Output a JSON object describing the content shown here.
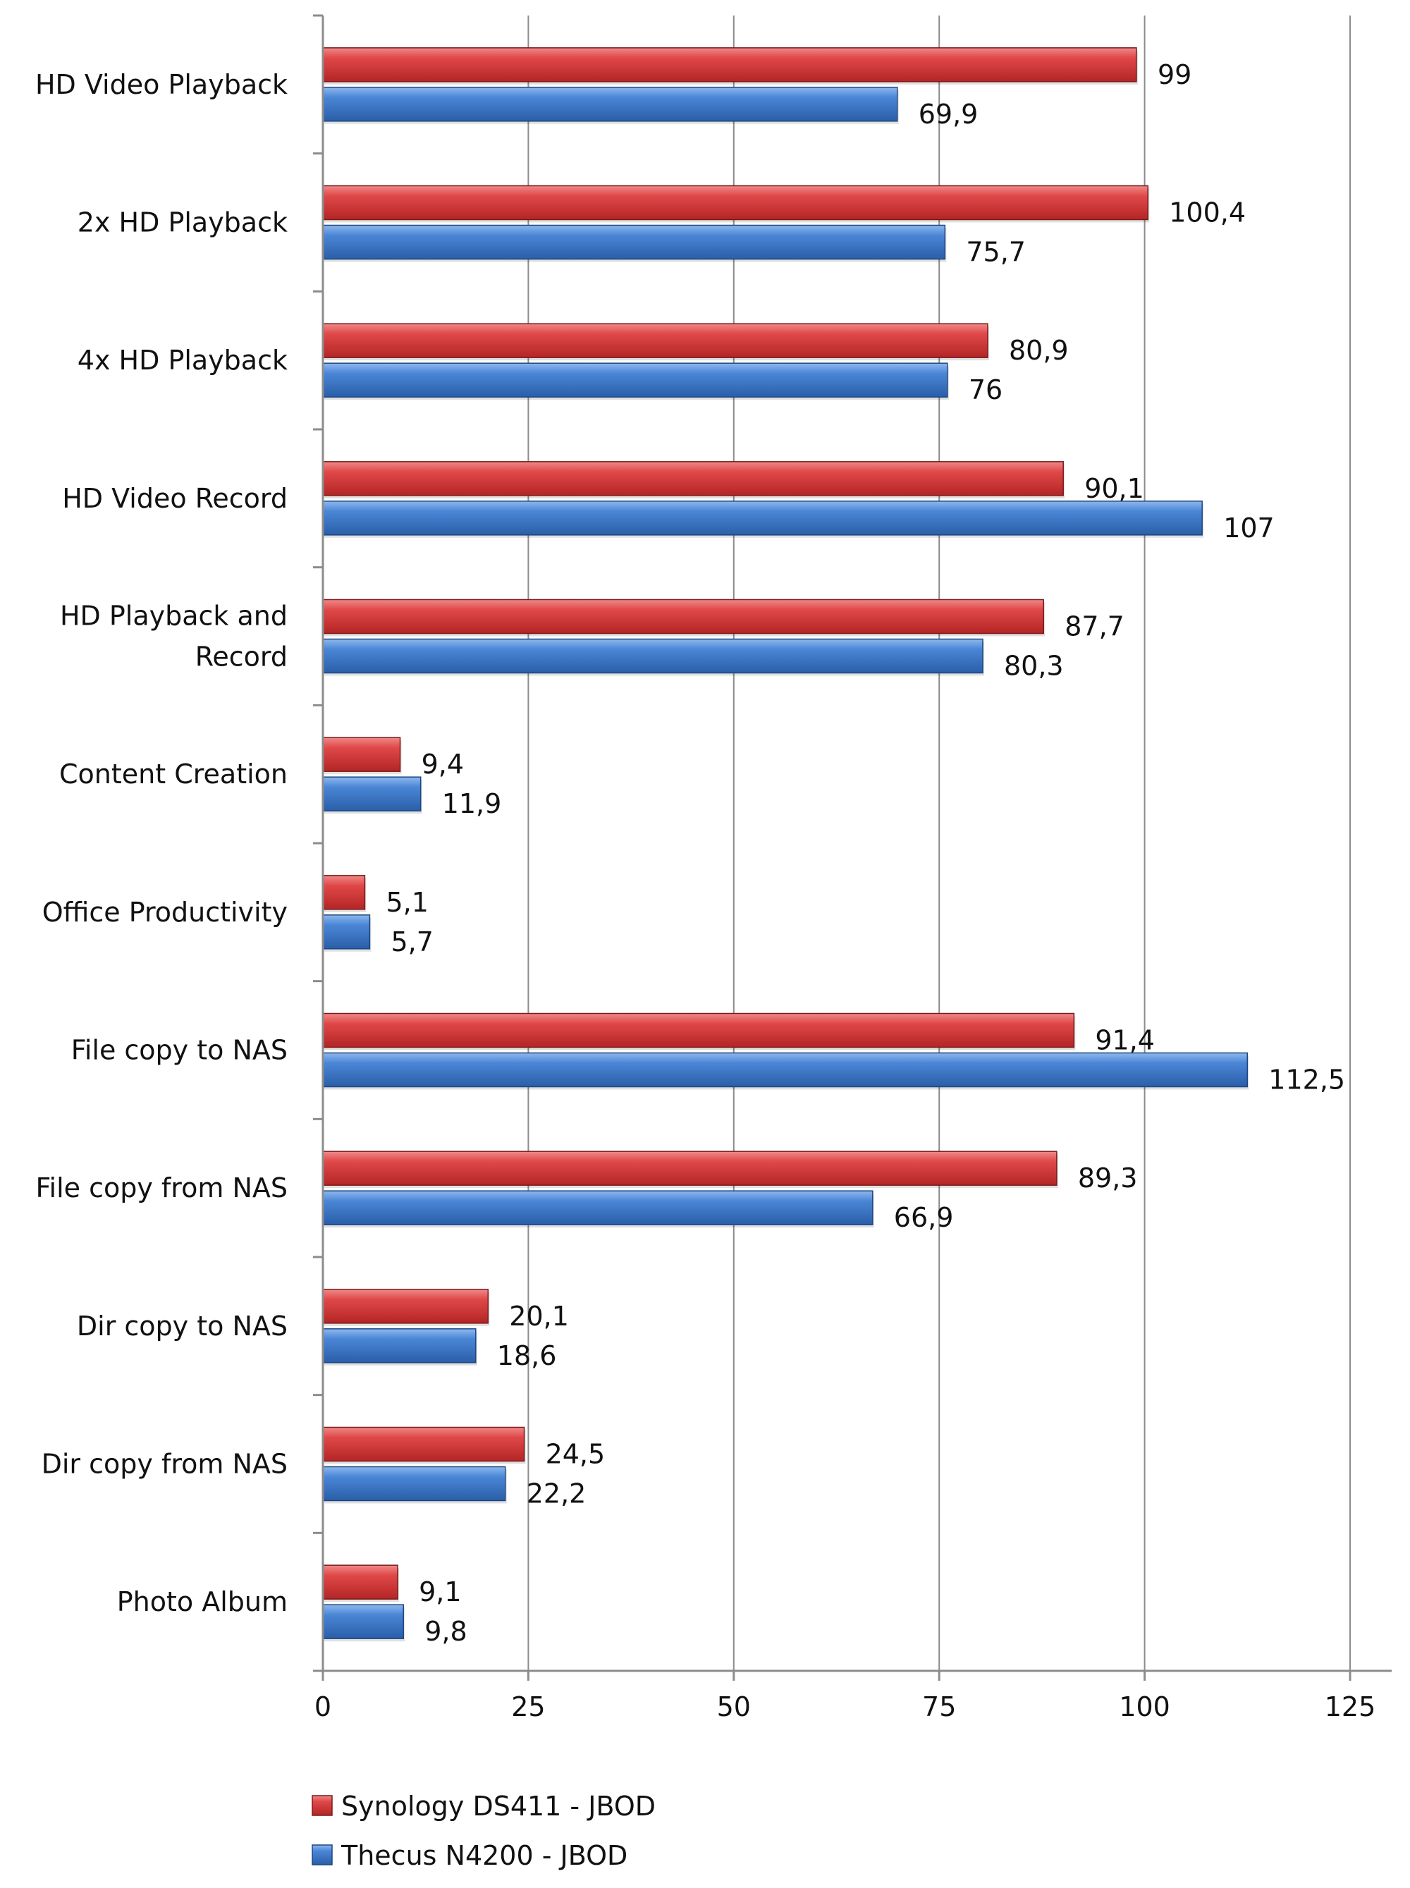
{
  "chart_data": {
    "type": "bar",
    "orientation": "horizontal",
    "title": "",
    "xlabel": "",
    "ylabel": "",
    "xlim": [
      0,
      125
    ],
    "x_ticks": [
      0,
      25,
      50,
      75,
      100,
      125
    ],
    "x_tick_labels": [
      "0",
      "25",
      "50",
      "75",
      "100",
      "125"
    ],
    "grid": "vertical",
    "legend_position": "bottom-left",
    "categories": [
      [
        "HD Video Playback"
      ],
      [
        "2x HD Playback"
      ],
      [
        "4x HD Playback"
      ],
      [
        "HD Video Record"
      ],
      [
        "HD Playback and",
        "Record"
      ],
      [
        "Content Creation"
      ],
      [
        "Office Productivity"
      ],
      [
        "File copy to NAS"
      ],
      [
        "File copy from NAS"
      ],
      [
        "Dir copy to NAS"
      ],
      [
        "Dir copy from NAS"
      ],
      [
        "Photo Album"
      ]
    ],
    "series": [
      {
        "name": "Synology DS411 - JBOD",
        "color": "#d23b3b",
        "values": [
          99,
          100.4,
          80.9,
          90.1,
          87.7,
          9.4,
          5.1,
          91.4,
          89.3,
          20.1,
          24.5,
          9.1
        ],
        "labels": [
          "99",
          "100,4",
          "80,9",
          "90,1",
          "87,7",
          "9,4",
          "5,1",
          "91,4",
          "89,3",
          "20,1",
          "24,5",
          "9,1"
        ]
      },
      {
        "name": "Thecus N4200 - JBOD",
        "color": "#3c77c9",
        "values": [
          69.9,
          75.7,
          76,
          107,
          80.3,
          11.9,
          5.7,
          112.5,
          66.9,
          18.6,
          22.2,
          9.8
        ],
        "labels": [
          "69,9",
          "75,7",
          "76",
          "107",
          "80,3",
          "11,9",
          "5,7",
          "112,5",
          "66,9",
          "18,6",
          "22,2",
          "9,8"
        ]
      }
    ]
  }
}
